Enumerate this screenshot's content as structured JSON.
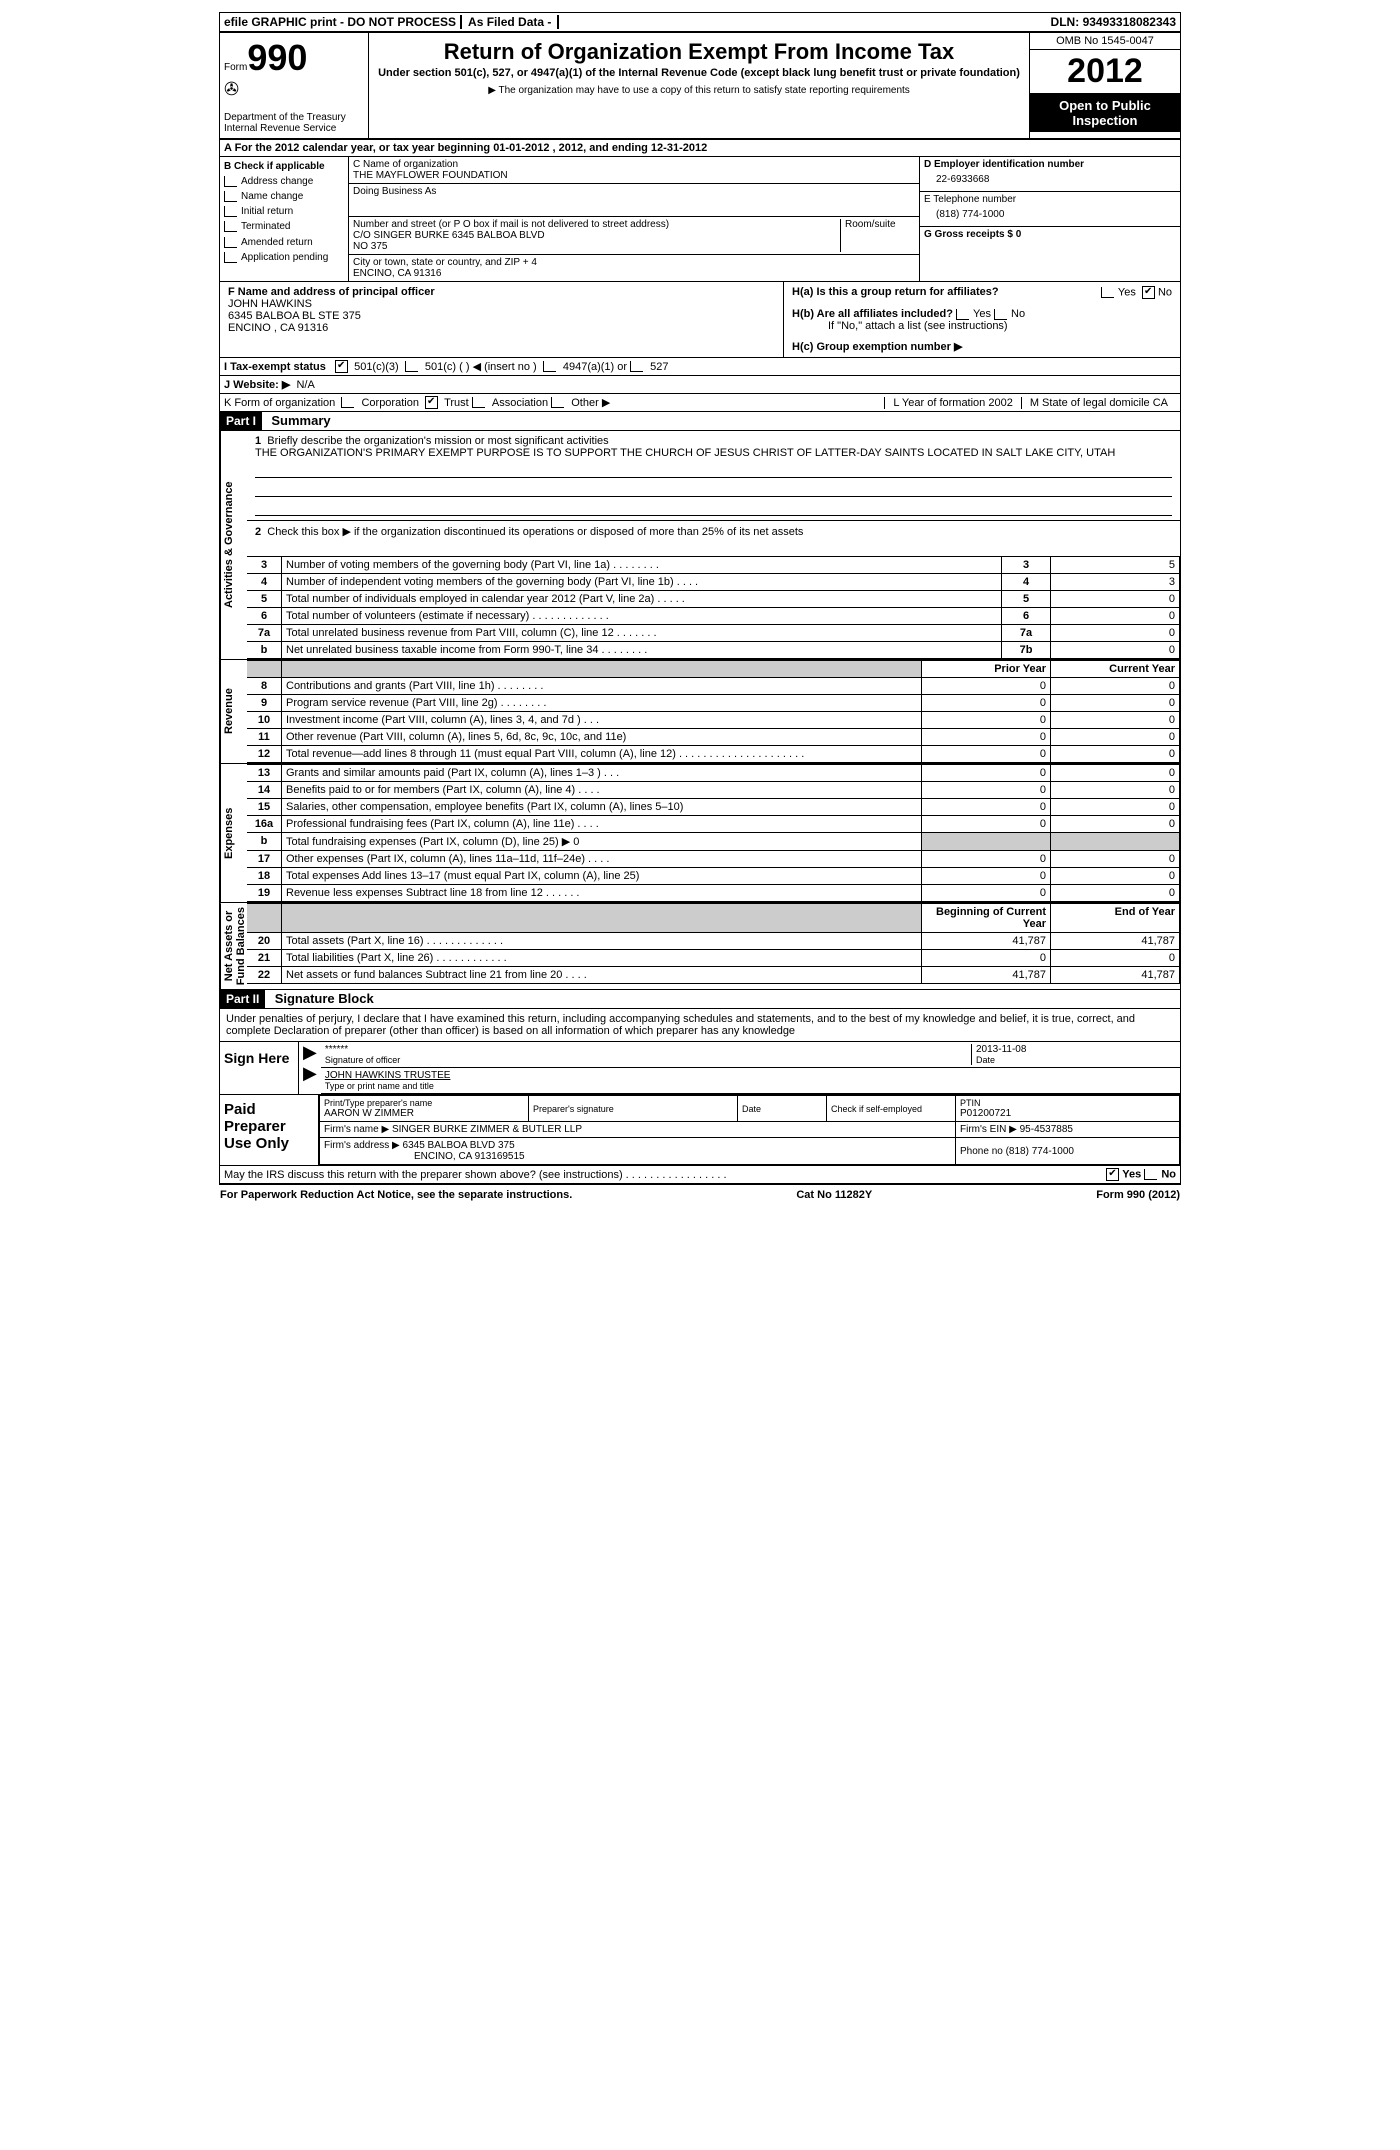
{
  "topbar": {
    "efile": "efile GRAPHIC print - DO NOT PROCESS",
    "asfiled": "As Filed Data -",
    "dln_label": "DLN:",
    "dln": "93493318082343"
  },
  "header": {
    "form_label": "Form",
    "form_no": "990",
    "dept": "Department of the Treasury",
    "irs": "Internal Revenue Service",
    "title": "Return of Organization Exempt From Income Tax",
    "sub": "Under section 501(c), 527, or 4947(a)(1) of the Internal Revenue Code (except black lung benefit trust or private foundation)",
    "note": "▶ The organization may have to use a copy of this return to satisfy state reporting requirements",
    "omb": "OMB No 1545-0047",
    "year": "2012",
    "open": "Open to Public Inspection"
  },
  "lineA": "A  For the 2012 calendar year, or tax year beginning 01-01-2012     , 2012, and ending 12-31-2012",
  "boxB": {
    "label": "B  Check if applicable",
    "items": [
      "Address change",
      "Name change",
      "Initial return",
      "Terminated",
      "Amended return",
      "Application pending"
    ]
  },
  "boxC": {
    "name_label": "C Name of organization",
    "name": "THE MAYFLOWER FOUNDATION",
    "dba_label": "Doing Business As",
    "addr_label": "Number and street (or P O  box if mail is not delivered to street address)",
    "room_label": "Room/suite",
    "addr1": "C/O SINGER BURKE 6345 BALBOA BLVD",
    "addr2": "NO 375",
    "city_label": "City or town, state or country, and ZIP + 4",
    "city": "ENCINO, CA  91316"
  },
  "boxD": {
    "label": "D Employer identification number",
    "ein": "22-6933668"
  },
  "boxE": {
    "label": "E Telephone number",
    "tel": "(818) 774-1000"
  },
  "boxG": {
    "label": "G Gross receipts $ 0"
  },
  "boxF": {
    "label": "F   Name and address of principal officer",
    "name": "JOHN HAWKINS",
    "addr": "6345 BALBOA BL STE 375",
    "city": "ENCINO , CA  91316"
  },
  "boxH": {
    "ha": "H(a)  Is this a group return for affiliates?",
    "hb": "H(b)  Are all affiliates included?",
    "hb_note": "If \"No,\" attach a list  (see instructions)",
    "hc": "H(c)   Group exemption number ▶",
    "yes": "Yes",
    "no": "No"
  },
  "lineI": {
    "label": "I   Tax-exempt status",
    "opts": [
      "501(c)(3)",
      "501(c) (   ) ◀ (insert no )",
      "4947(a)(1) or",
      "527"
    ]
  },
  "lineJ": {
    "label": "J  Website: ▶",
    "val": "N/A"
  },
  "lineK": {
    "label": "K Form of organization",
    "opts": [
      "Corporation",
      "Trust",
      "Association",
      "Other ▶"
    ],
    "l_label": "L Year of formation  2002",
    "m_label": "M State of legal domicile  CA"
  },
  "part1": {
    "hdr": "Part I",
    "title": "Summary"
  },
  "summary": {
    "q1_label": "1",
    "q1": "Briefly describe the organization's mission or most significant activities",
    "mission": "THE ORGANIZATION'S PRIMARY EXEMPT PURPOSE IS TO SUPPORT THE CHURCH OF JESUS CHRIST OF LATTER-DAY SAINTS LOCATED IN SALT LAKE CITY, UTAH",
    "q2_label": "2",
    "q2": "Check this box ▶       if the organization discontinued its operations or disposed of more than 25% of its net assets",
    "rows_gov": [
      {
        "n": "3",
        "t": "Number of voting members of the governing body (Part VI, line 1a)   .    .    .    .    .    .    .    .",
        "box": "3",
        "v": "5"
      },
      {
        "n": "4",
        "t": "Number of independent voting members of the governing body (Part VI, line 1b)    .    .    .    .",
        "box": "4",
        "v": "3"
      },
      {
        "n": "5",
        "t": "Total number of individuals employed in calendar year 2012 (Part V, line 2a)   .    .    .    .    .",
        "box": "5",
        "v": "0"
      },
      {
        "n": "6",
        "t": "Total number of volunteers (estimate if necessary)   .    .    .    .    .    .    .    .    .    .    .    .    .",
        "box": "6",
        "v": "0"
      },
      {
        "n": "7a",
        "t": "Total unrelated business revenue from Part VIII, column (C), line 12    .    .    .    .    .    .    .",
        "box": "7a",
        "v": "0"
      },
      {
        "n": "b",
        "t": "Net unrelated business taxable income from Form 990-T, line 34    .    .    .    .    .    .    .    .",
        "box": "7b",
        "v": "0"
      }
    ],
    "col_prior": "Prior Year",
    "col_curr": "Current Year",
    "rows_rev": [
      {
        "n": "8",
        "t": "Contributions and grants (Part VIII, line 1h)    .    .    .    .    .    .    .    .",
        "p": "0",
        "c": "0"
      },
      {
        "n": "9",
        "t": "Program service revenue (Part VIII, line 2g)    .    .    .    .    .    .    .    .",
        "p": "0",
        "c": "0"
      },
      {
        "n": "10",
        "t": "Investment income (Part VIII, column (A), lines 3, 4, and 7d )    .    .    .",
        "p": "0",
        "c": "0"
      },
      {
        "n": "11",
        "t": "Other revenue (Part VIII, column (A), lines 5, 6d, 8c, 9c, 10c, and 11e)",
        "p": "0",
        "c": "0"
      },
      {
        "n": "12",
        "t": "Total revenue—add lines 8 through 11 (must equal Part VIII, column (A), line 12)  .    .    .    .    .    .    .    .    .    .    .    .    .    .    .    .    .    .    .    .    .",
        "p": "0",
        "c": "0"
      }
    ],
    "rows_exp": [
      {
        "n": "13",
        "t": "Grants and similar amounts paid (Part IX, column (A), lines 1–3 )    .    .    .",
        "p": "0",
        "c": "0"
      },
      {
        "n": "14",
        "t": "Benefits paid to or for members (Part IX, column (A), line 4)    .    .    .    .",
        "p": "0",
        "c": "0"
      },
      {
        "n": "15",
        "t": "Salaries, other compensation, employee benefits (Part IX, column (A), lines 5–10)",
        "p": "0",
        "c": "0"
      },
      {
        "n": "16a",
        "t": "Professional fundraising fees (Part IX, column (A), line 11e)    .    .    .    .",
        "p": "0",
        "c": "0"
      },
      {
        "n": "b",
        "t": "Total fundraising expenses (Part IX, column (D), line 25)  ▶ 0",
        "p": "",
        "c": ""
      },
      {
        "n": "17",
        "t": "Other expenses (Part IX, column (A), lines 11a–11d, 11f–24e)    .    .    .    .",
        "p": "0",
        "c": "0"
      },
      {
        "n": "18",
        "t": "Total expenses  Add lines 13–17 (must equal Part IX, column (A), line 25)",
        "p": "0",
        "c": "0"
      },
      {
        "n": "19",
        "t": "Revenue less expenses  Subtract line 18 from line 12   .    .    .    .    .    .",
        "p": "0",
        "c": "0"
      }
    ],
    "col_boy": "Beginning of Current Year",
    "col_eoy": "End of Year",
    "rows_na": [
      {
        "n": "20",
        "t": "Total assets (Part X, line 16)    .    .    .    .    .    .    .    .    .    .    .    .    .",
        "p": "41,787",
        "c": "41,787"
      },
      {
        "n": "21",
        "t": "Total liabilities (Part X, line 26)    .    .    .    .    .    .    .    .    .    .    .    .",
        "p": "0",
        "c": "0"
      },
      {
        "n": "22",
        "t": "Net assets or fund balances  Subtract line 21 from line 20    .    .    .    .",
        "p": "41,787",
        "c": "41,787"
      }
    ],
    "vlabels": {
      "gov": "Activities & Governance",
      "rev": "Revenue",
      "exp": "Expenses",
      "na": "Net Assets or\nFund Balances"
    }
  },
  "part2": {
    "hdr": "Part II",
    "title": "Signature Block",
    "decl": "Under penalties of perjury, I declare that I have examined this return, including accompanying schedules and statements, and to the best of my knowledge and belief, it is true, correct, and complete  Declaration of preparer (other than officer) is based on all information of which preparer has any knowledge"
  },
  "sign": {
    "here": "Sign Here",
    "stars": "******",
    "sig_label": "Signature of officer",
    "date_label": "Date",
    "date": "2013-11-08",
    "name": "JOHN HAWKINS TRUSTEE",
    "name_label": "Type or print name and title"
  },
  "paid": {
    "label": "Paid Preparer Use Only",
    "h1": "Print/Type preparer's name",
    "h2": "Preparer's signature",
    "h3": "Date",
    "h4": "Check        if self-employed",
    "h5": "PTIN",
    "prep_name": "AARON W ZIMMER",
    "ptin": "P01200721",
    "firm_label": "Firm's name    ▶",
    "firm": "SINGER BURKE ZIMMER & BUTLER LLP",
    "ein_label": "Firm's EIN ▶",
    "ein": "95-4537885",
    "addr_label": "Firm's address ▶",
    "addr": "6345 BALBOA BLVD 375",
    "addr2": "ENCINO, CA  913169515",
    "phone_label": "Phone no  (818) 774-1000",
    "discuss": "May the IRS discuss this return with the preparer shown above? (see instructions)    .    .    .    .    .    .    .    .    .    .    .    .    .    .    .    .    .",
    "yes": "Yes",
    "no": "No"
  },
  "footer": {
    "pra": "For Paperwork Reduction Act Notice, see the separate instructions.",
    "cat": "Cat No  11282Y",
    "form": "Form 990 (2012)"
  }
}
